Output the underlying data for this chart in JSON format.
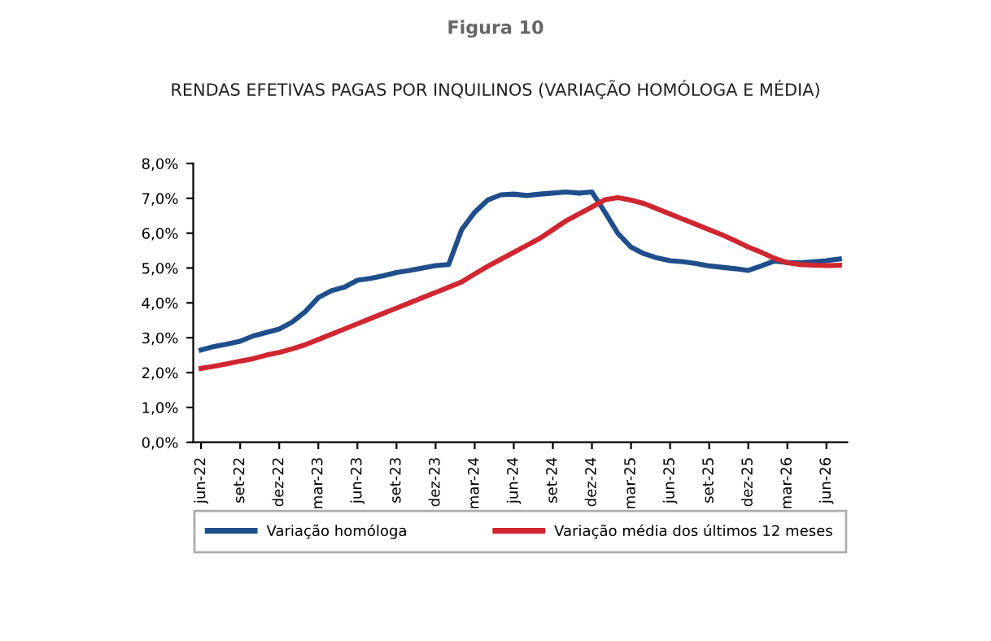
{
  "chart_data": {
    "type": "line",
    "title": "Figura 10",
    "subtitle": "RENDAS EFETIVAS PAGAS POR INQUILINOS (VARIAÇÃO HOMÓLOGA E MÉDIA)",
    "categories": [
      "jun-22",
      null,
      null,
      "set-22",
      null,
      null,
      "dez-22",
      null,
      null,
      "mar-23",
      null,
      null,
      "jun-23",
      null,
      null,
      "set-23",
      null,
      null,
      "dez-23",
      null,
      null,
      "mar-24",
      null,
      null,
      "jun-24",
      null,
      null,
      "set-24",
      null,
      null,
      "dez-24",
      null,
      null,
      "mar-25",
      null,
      null,
      "jun-25",
      null,
      null,
      "set-25",
      null,
      null,
      "dez-25",
      null,
      null,
      "mar-26",
      null,
      null,
      "jun-26",
      null
    ],
    "series": [
      {
        "name": "Variação homóloga",
        "color": "#1f4e8c",
        "values": [
          2.65,
          2.75,
          2.82,
          2.9,
          3.05,
          3.15,
          3.25,
          3.45,
          3.75,
          4.15,
          4.35,
          4.45,
          4.65,
          4.7,
          4.78,
          4.87,
          4.93,
          5.0,
          5.07,
          5.1,
          6.1,
          6.6,
          6.95,
          7.1,
          7.12,
          7.08,
          7.12,
          7.15,
          7.18,
          7.15,
          7.18,
          6.6,
          5.99,
          5.6,
          5.41,
          5.29,
          5.21,
          5.18,
          5.13,
          5.06,
          5.02,
          4.98,
          4.93,
          5.06,
          5.2,
          5.16,
          5.15,
          5.18,
          5.21,
          5.26
        ]
      },
      {
        "name": "Variação média dos últimos 12 meses",
        "color": "#d0262f",
        "values": [
          2.12,
          2.18,
          2.25,
          2.33,
          2.4,
          2.5,
          2.58,
          2.68,
          2.8,
          2.95,
          3.1,
          3.25,
          3.4,
          3.55,
          3.7,
          3.85,
          4.0,
          4.15,
          4.3,
          4.45,
          4.6,
          4.83,
          5.05,
          5.25,
          5.45,
          5.65,
          5.85,
          6.1,
          6.35,
          6.55,
          6.75,
          6.96,
          7.02,
          6.95,
          6.85,
          6.7,
          6.55,
          6.4,
          6.25,
          6.1,
          5.95,
          5.78,
          5.6,
          5.45,
          5.28,
          5.15,
          5.1,
          5.08,
          5.07,
          5.08
        ]
      }
    ],
    "ylim": [
      0,
      8
    ],
    "yticks": [
      {
        "value": 0,
        "label": "0,0%"
      },
      {
        "value": 1,
        "label": "1,0%"
      },
      {
        "value": 2,
        "label": "2,0%"
      },
      {
        "value": 3,
        "label": "3,0%"
      },
      {
        "value": 4,
        "label": "4,0%"
      },
      {
        "value": 5,
        "label": "5,0%"
      },
      {
        "value": 6,
        "label": "6,0%"
      },
      {
        "value": 7,
        "label": "7,0%"
      },
      {
        "value": 8,
        "label": "8,0%"
      }
    ],
    "grid": false,
    "legend": "bottom",
    "marker": "none",
    "line_style": "solid"
  }
}
